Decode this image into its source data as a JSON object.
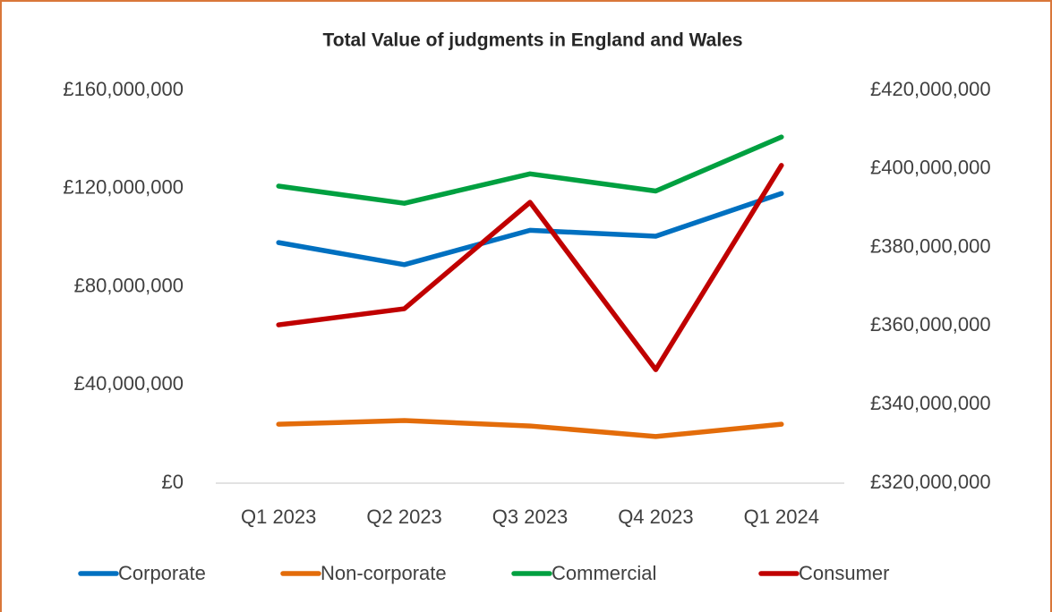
{
  "chart_data": {
    "type": "line",
    "title": "Total Value of judgments in England and Wales",
    "categories": [
      "Q1 2023",
      "Q2 2023",
      "Q3 2023",
      "Q4 2023",
      "Q1 2024"
    ],
    "series": [
      {
        "name": "Corporate",
        "color": "#0070c0",
        "values": [
          98000000,
          89000000,
          103000000,
          100600000,
          118000000
        ]
      },
      {
        "name": "Non-corporate",
        "color": "#e36c0a",
        "values": [
          24000000,
          25500000,
          23300000,
          19000000,
          24000000
        ]
      },
      {
        "name": "Commercial",
        "color": "#00a040",
        "values": [
          121000000,
          114000000,
          126000000,
          119000000,
          141000000
        ]
      },
      {
        "name": "Consumer",
        "color": "#c00000",
        "axis": "y2",
        "values": [
          360300000,
          364400000,
          391500000,
          348900000,
          400900000
        ]
      }
    ],
    "ylim": [
      0,
      160000000
    ],
    "yticks": [
      {
        "value": 0,
        "label": "£0"
      },
      {
        "value": 40000000,
        "label": "£40,000,000"
      },
      {
        "value": 80000000,
        "label": "£80,000,000"
      },
      {
        "value": 120000000,
        "label": "£120,000,000"
      },
      {
        "value": 160000000,
        "label": "£160,000,000"
      }
    ],
    "y2lim": [
      320000000,
      420000000
    ],
    "y2ticks": [
      {
        "value": 320000000,
        "label": "£320,000,000"
      },
      {
        "value": 340000000,
        "label": "£340,000,000"
      },
      {
        "value": 360000000,
        "label": "£360,000,000"
      },
      {
        "value": 380000000,
        "label": "£380,000,000"
      },
      {
        "value": 400000000,
        "label": "£400,000,000"
      },
      {
        "value": 420000000,
        "label": "£420,000,000"
      }
    ],
    "grid": false,
    "legend": "bottom"
  }
}
